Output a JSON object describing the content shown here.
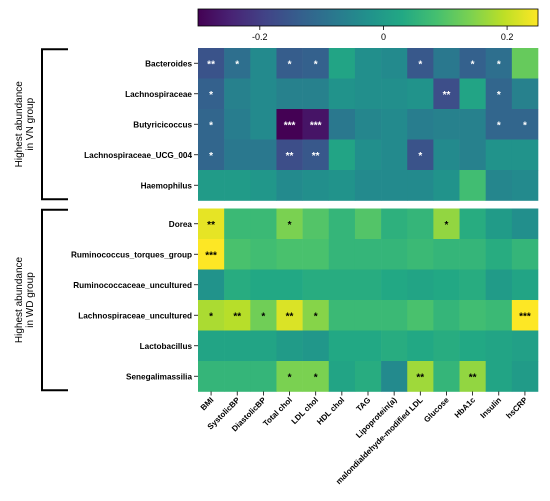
{
  "chart_data": {
    "type": "heatmap",
    "title": "",
    "xlabel": "",
    "ylabel": "",
    "colormap": "viridis",
    "colorbar": {
      "range": [
        -0.3,
        0.25
      ],
      "ticks": [
        -0.2,
        0,
        0.2
      ],
      "tick_labels": [
        "-0.2",
        "0",
        "0.2"
      ],
      "placement": "top"
    },
    "row_groups": [
      {
        "label_line1": "Highest abundance",
        "label_line2": "in VN group",
        "rows": [
          0,
          4
        ]
      },
      {
        "label_line1": "Highest abundance",
        "label_line2": "in WD group",
        "rows": [
          5,
          10
        ]
      }
    ],
    "columns": [
      "BMI",
      "SystolicBP",
      "DiastolicBP",
      "Total chol",
      "LDL chol",
      "HDL chol",
      "TAG",
      "Lipoprotein(a)",
      "malondialdehyde-modified LDL",
      "Glucose",
      "HbA1c",
      "Insulin",
      "hsCRP"
    ],
    "rows": [
      "Bacteroides",
      "Lachnospiraceae",
      "Butyricicoccus",
      "Lachnospiraceae_UCG_004",
      "Haemophilus",
      "Dorea",
      "Ruminococcus_torques_group",
      "Ruminococcaceae_uncultured",
      "Lachnospiraceae_uncultured",
      "Lactobacillus",
      "Senegalimassilia"
    ],
    "values": [
      [
        -0.16,
        -0.1,
        -0.04,
        -0.14,
        -0.13,
        0.02,
        -0.03,
        -0.04,
        -0.15,
        -0.08,
        -0.13,
        -0.1,
        0.12
      ],
      [
        -0.13,
        -0.06,
        -0.04,
        -0.06,
        -0.06,
        -0.02,
        -0.03,
        -0.03,
        -0.02,
        -0.17,
        0.02,
        -0.12,
        -0.06
      ],
      [
        -0.12,
        -0.07,
        -0.04,
        -0.31,
        -0.27,
        -0.08,
        -0.05,
        -0.04,
        -0.07,
        -0.06,
        -0.06,
        -0.12,
        -0.12
      ],
      [
        -0.12,
        -0.08,
        -0.08,
        -0.17,
        -0.15,
        0.02,
        -0.03,
        -0.04,
        -0.16,
        -0.04,
        -0.06,
        -0.02,
        -0.02
      ],
      [
        0.0,
        0.0,
        -0.01,
        -0.04,
        -0.03,
        -0.02,
        -0.04,
        -0.04,
        -0.04,
        -0.02,
        0.08,
        -0.05,
        -0.04
      ],
      [
        0.23,
        0.07,
        0.07,
        0.14,
        0.1,
        0.06,
        0.1,
        0.05,
        0.06,
        0.16,
        0.04,
        0.0,
        -0.03
      ],
      [
        0.25,
        0.09,
        0.08,
        0.09,
        0.09,
        0.06,
        0.06,
        0.06,
        0.07,
        0.06,
        0.06,
        0.04,
        0.06
      ],
      [
        -0.02,
        0.04,
        0.03,
        0.03,
        0.04,
        0.04,
        0.04,
        0.03,
        0.02,
        0.03,
        0.04,
        0.0,
        0.02
      ],
      [
        0.18,
        0.19,
        0.13,
        0.22,
        0.15,
        0.07,
        0.07,
        0.07,
        0.09,
        0.06,
        0.08,
        0.07,
        0.26
      ],
      [
        0.02,
        0.02,
        0.02,
        0.0,
        -0.01,
        0.03,
        0.03,
        0.04,
        0.03,
        0.04,
        0.03,
        0.02,
        0.01
      ],
      [
        0.06,
        0.06,
        0.06,
        0.14,
        0.14,
        0.02,
        0.04,
        -0.04,
        0.17,
        0.06,
        0.16,
        0.02,
        0.0
      ]
    ],
    "significance": [
      [
        "**",
        "*",
        "",
        "*",
        "*",
        "",
        "",
        "",
        "*",
        "",
        "*",
        "*",
        ""
      ],
      [
        "*",
        "",
        "",
        "",
        "",
        "",
        "",
        "",
        "",
        "**",
        "",
        "*",
        ""
      ],
      [
        "*",
        "",
        "",
        "***",
        "***",
        "",
        "",
        "",
        "",
        "",
        "",
        "*",
        "*"
      ],
      [
        "*",
        "",
        "",
        "**",
        "**",
        "",
        "",
        "",
        "*",
        "",
        "",
        "",
        ""
      ],
      [
        "",
        "",
        "",
        "",
        "",
        "",
        "",
        "",
        "",
        "",
        "",
        "",
        ""
      ],
      [
        "**",
        "",
        "",
        "*",
        "",
        "",
        "",
        "",
        "",
        "*",
        "",
        "",
        ""
      ],
      [
        "***",
        "",
        "",
        "",
        "",
        "",
        "",
        "",
        "",
        "",
        "",
        "",
        ""
      ],
      [
        "",
        "",
        "",
        "",
        "",
        "",
        "",
        "",
        "",
        "",
        "",
        "",
        ""
      ],
      [
        "*",
        "**",
        "*",
        "**",
        "*",
        "",
        "",
        "",
        "",
        "",
        "",
        "",
        "***"
      ],
      [
        "",
        "",
        "",
        "",
        "",
        "",
        "",
        "",
        "",
        "",
        "",
        "",
        ""
      ],
      [
        "",
        "",
        "",
        "*",
        "*",
        "",
        "",
        "",
        "**",
        "",
        "**",
        "",
        ""
      ]
    ]
  }
}
